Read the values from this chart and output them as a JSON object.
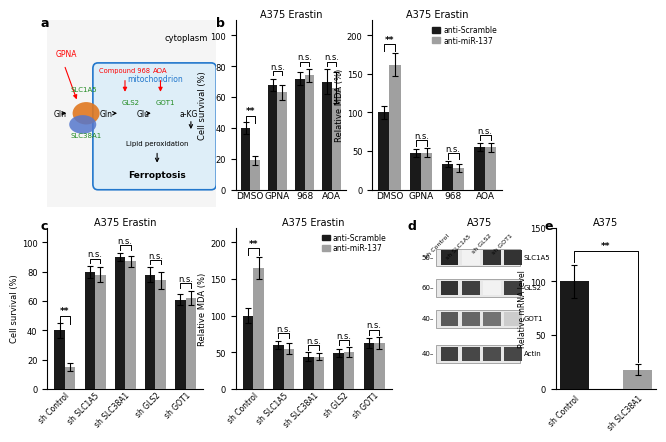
{
  "panel_b_left": {
    "title": "A375 Erastin",
    "categories": [
      "DMSO",
      "GPNA",
      "968",
      "AOA"
    ],
    "black_vals": [
      40,
      68,
      72,
      70
    ],
    "black_err": [
      4,
      4,
      4,
      8
    ],
    "gray_vals": [
      19,
      63,
      74,
      66
    ],
    "gray_err": [
      3,
      5,
      4,
      10
    ],
    "ylabel": "Cell survival (%)",
    "ylim": [
      0,
      110
    ],
    "yticks": [
      0,
      20,
      40,
      60,
      80,
      100
    ]
  },
  "panel_b_right": {
    "title": "A375 Erastin",
    "categories": [
      "DMSO",
      "GPNA",
      "968",
      "AOA"
    ],
    "black_vals": [
      100,
      47,
      33,
      55
    ],
    "black_err": [
      8,
      5,
      4,
      5
    ],
    "gray_vals": [
      162,
      48,
      28,
      55
    ],
    "gray_err": [
      15,
      6,
      5,
      6
    ],
    "ylabel": "Relative MDA (%)",
    "ylim": [
      0,
      220
    ],
    "yticks": [
      0,
      50,
      100,
      150,
      200
    ]
  },
  "panel_c_left": {
    "title": "A375 Erastin",
    "categories": [
      "sh Control",
      "sh SLC1A5",
      "sh SLC38A1",
      "sh GLS2",
      "sh GOT1"
    ],
    "black_vals": [
      40,
      80,
      90,
      78,
      61
    ],
    "black_err": [
      5,
      4,
      3,
      5,
      4
    ],
    "gray_vals": [
      15,
      78,
      87,
      74,
      62
    ],
    "gray_err": [
      3,
      5,
      4,
      6,
      5
    ],
    "ylabel": "Cell survival (%)",
    "ylim": [
      0,
      110
    ],
    "yticks": [
      0,
      20,
      40,
      60,
      80,
      100
    ]
  },
  "panel_c_right": {
    "title": "A375 Erastin",
    "categories": [
      "sh Control",
      "sh SLC1A5",
      "sh SLC38A1",
      "sh GLS2",
      "sh GOT1"
    ],
    "black_vals": [
      100,
      60,
      44,
      49,
      63
    ],
    "black_err": [
      10,
      6,
      6,
      6,
      7
    ],
    "gray_vals": [
      165,
      55,
      44,
      50,
      63
    ],
    "gray_err": [
      15,
      7,
      5,
      7,
      8
    ],
    "ylabel": "Relative MDA (%)",
    "ylim": [
      0,
      220
    ],
    "yticks": [
      0,
      50,
      100,
      150,
      200
    ]
  },
  "panel_e": {
    "title": "A375",
    "categories": [
      "sh Control",
      "sh SLC38A1"
    ],
    "black_vals": [
      100,
      18
    ],
    "black_err": [
      15,
      5
    ],
    "ylabel": "Relative mRNA level",
    "ylim": [
      0,
      150
    ],
    "yticks": [
      0,
      50,
      100,
      150
    ]
  },
  "colors": {
    "black": "#1a1a1a",
    "gray": "#a0a0a0",
    "background": "#ffffff"
  },
  "legend_labels": [
    "anti-Scramble",
    "anti-miR-137"
  ],
  "panel_a": {
    "cytoplasm_label": "cytoplasm",
    "mito_label": "mitochondrion",
    "gpna_label": "GPNA",
    "gln_label": "Gln",
    "slc1a5_label": "SLC1A5",
    "slc38a1_label": "SLC38A1",
    "compound968_label": "Compound 968",
    "aoa_label": "AOA",
    "gls2_label": "GLS2",
    "glu_label": "Glu",
    "got1_label": "GOT1",
    "akg_label": "a-KG",
    "lipid_label": "Lipid peroxidation",
    "ferroptosis_label": "Ferroptosis"
  },
  "panel_d": {
    "title": "A375",
    "mw_labels": [
      "50–",
      "60–",
      "40–",
      "40–"
    ],
    "protein_labels": [
      "SLC1A5",
      "GLS2",
      "GOT1",
      "Actin"
    ],
    "col_labels": [
      "sh Control",
      "sh SLC1A5",
      "sh GLS2",
      "sh GOT1"
    ]
  }
}
